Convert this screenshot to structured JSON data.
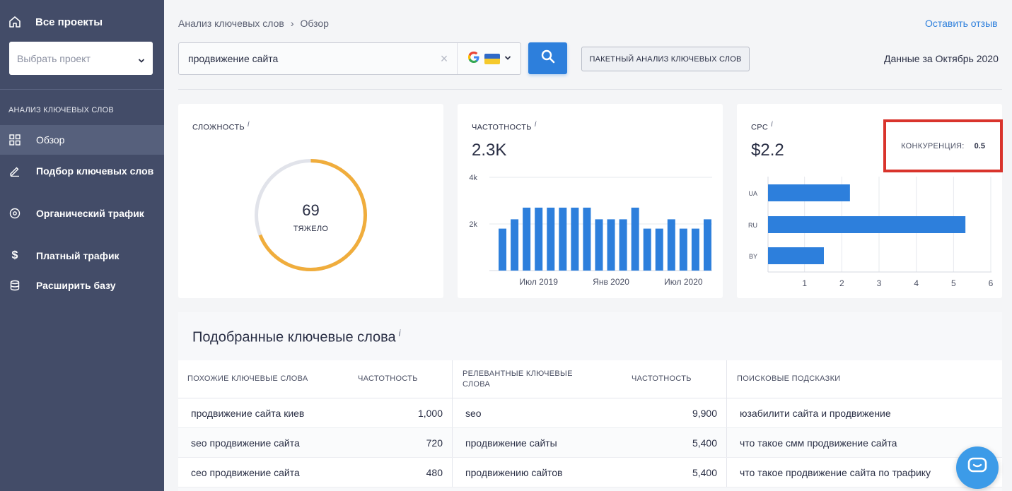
{
  "sidebar": {
    "all_projects": "Все проекты",
    "project_select_placeholder": "Выбрать проект",
    "section_title": "АНАЛИЗ КЛЮЧЕВЫХ СЛОВ",
    "items": [
      {
        "label": "Обзор",
        "icon": "grid-icon",
        "active": true
      },
      {
        "label": "Подбор ключевых слов",
        "icon": "pencil-icon"
      },
      {
        "label": "Органический трафик",
        "icon": "target-icon"
      },
      {
        "label": "Платный трафик",
        "icon": "dollar-icon"
      },
      {
        "label": "Расширить базу",
        "icon": "database-icon"
      }
    ]
  },
  "header": {
    "breadcrumb": [
      "Анализ ключевых слов",
      "Обзор"
    ],
    "feedback_link": "Оставить отзыв",
    "search_value": "продвижение сайта",
    "batch_button": "ПАКЕТНЫЙ АНАЛИЗ КЛЮЧЕВЫХ СЛОВ",
    "data_date": "Данные за Октябрь 2020"
  },
  "cards": {
    "difficulty": {
      "title": "СЛОЖНОСТЬ",
      "value": "69",
      "label": "ТЯЖЕЛО",
      "fraction": 0.69
    },
    "frequency": {
      "title": "ЧАСТОТНОСТЬ",
      "value": "2.3K"
    },
    "cpc": {
      "title": "CPC",
      "value": "$2.2",
      "competition_label": "КОНКУРЕНЦИЯ:",
      "competition_value": "0.5"
    }
  },
  "colors": {
    "accent": "#2d7fdc",
    "sidebar": "#434c68",
    "gauge": "#f0ad3c",
    "highlight": "#d9342c"
  },
  "chart_data": [
    {
      "type": "bar",
      "title": "ЧАСТОТНОСТЬ",
      "values": [
        1800,
        2200,
        2700,
        2700,
        2700,
        2700,
        2700,
        2700,
        2200,
        2200,
        2200,
        2700,
        1800,
        1800,
        2200,
        1800,
        1800,
        2200
      ],
      "x_tick_labels": [
        "Июл 2019",
        "Янв 2020",
        "Июл 2020"
      ],
      "y_tick_labels": [
        "4k",
        "2k"
      ],
      "ylim": [
        0,
        4000
      ],
      "grid": true
    },
    {
      "type": "bar",
      "orientation": "horizontal",
      "title": "CPC",
      "categories": [
        "UA",
        "RU",
        "BY"
      ],
      "values": [
        2.2,
        5.3,
        1.5
      ],
      "x_tick_labels": [
        "1",
        "2",
        "3",
        "4",
        "5",
        "6"
      ],
      "xlim": [
        0,
        6
      ],
      "grid": true
    }
  ],
  "keywords": {
    "title": "Подобранные ключевые слова",
    "headers": [
      "ПОХОЖИЕ КЛЮЧЕВЫЕ СЛОВА",
      "ЧАСТОТНОСТЬ",
      "РЕЛЕВАНТНЫЕ КЛЮЧЕВЫЕ СЛОВА",
      "ЧАСТОТНОСТЬ",
      "ПОИСКОВЫЕ ПОДСКАЗКИ"
    ],
    "rows": [
      [
        "продвижение сайта киев",
        "1,000",
        "seo",
        "9,900",
        "юзабилити сайта и продвижение"
      ],
      [
        "seo продвижение сайта",
        "720",
        "продвижение сайты",
        "5,400",
        "что такое смм продвижение сайта"
      ],
      [
        "сео продвижение сайта",
        "480",
        "продвижению сайтов",
        "5,400",
        "что такое продвижение сайта по трафику"
      ]
    ]
  }
}
